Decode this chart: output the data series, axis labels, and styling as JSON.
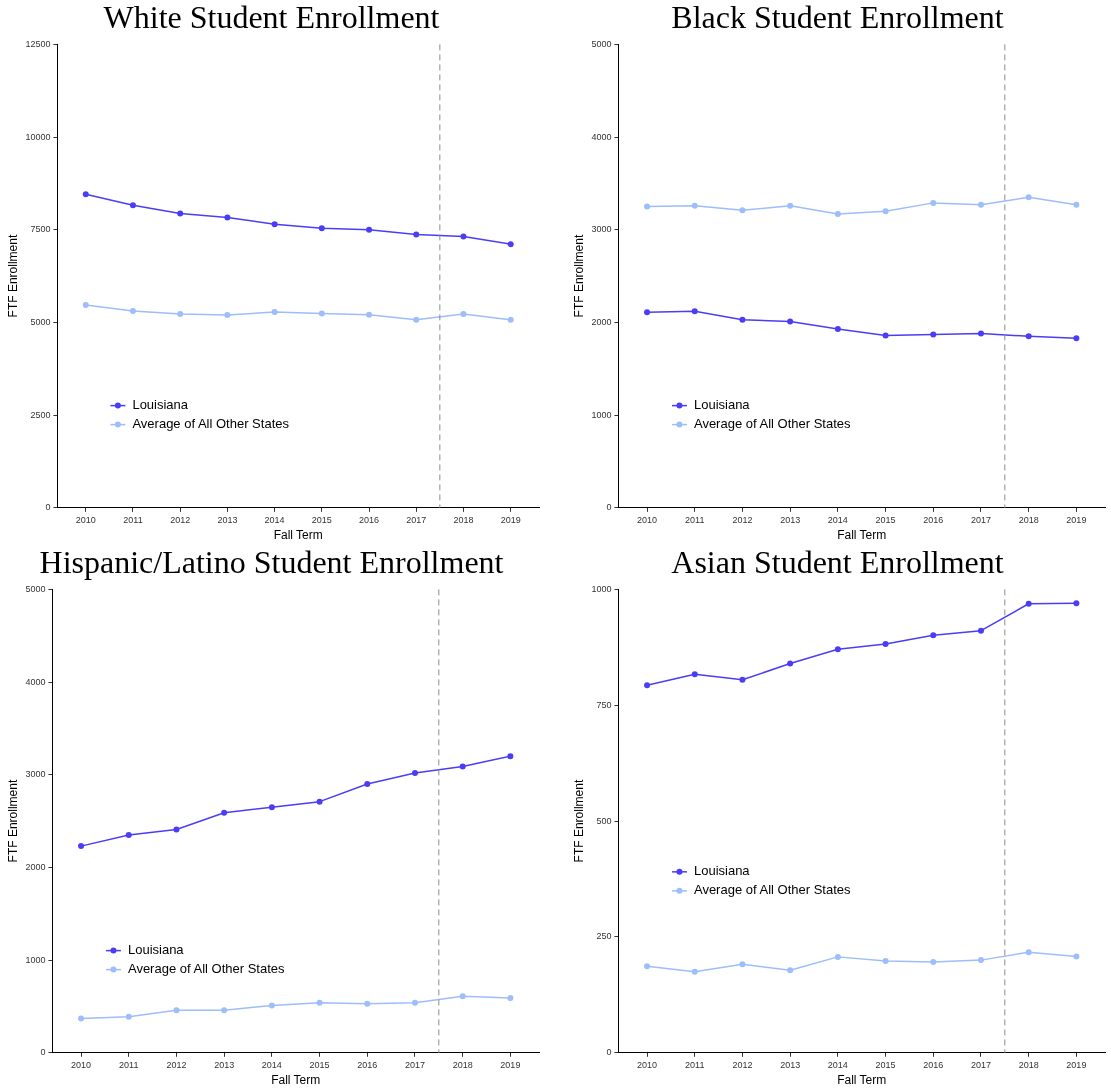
{
  "chart_data": [
    {
      "type": "line",
      "title": "White Student Enrollment",
      "xlabel": "Fall Term",
      "ylabel": "FTF Enrollment",
      "x": [
        2010,
        2011,
        2012,
        2013,
        2014,
        2015,
        2016,
        2017,
        2018,
        2019
      ],
      "xlim": [
        2009.4,
        2019.6
      ],
      "xticks": [
        2010,
        2011,
        2012,
        2013,
        2014,
        2015,
        2016,
        2017,
        2018,
        2019
      ],
      "ylim": [
        0,
        12500
      ],
      "yticks": [
        0,
        2500,
        5000,
        7500,
        10000,
        12500
      ],
      "grid": false,
      "legend": "bottom left",
      "marker": "circle",
      "line_style": "solid",
      "ref_lines": [
        {
          "axis": "x",
          "value": 2017.5,
          "color": "#8c8c8c",
          "line_style": "dashed"
        }
      ],
      "series": [
        {
          "name": "Louisiana",
          "color": "#4b3df6",
          "values": [
            8460,
            8160,
            7940,
            7830,
            7650,
            7540,
            7500,
            7370,
            7320,
            7110
          ]
        },
        {
          "name": "Average of All Other States",
          "color": "#9dbdfb",
          "values": [
            5470,
            5310,
            5230,
            5200,
            5280,
            5240,
            5210,
            5070,
            5230,
            5070
          ]
        }
      ]
    },
    {
      "type": "line",
      "title": "Black Student Enrollment",
      "xlabel": "Fall Term",
      "ylabel": "FTF Enrollment",
      "x": [
        2010,
        2011,
        2012,
        2013,
        2014,
        2015,
        2016,
        2017,
        2018,
        2019
      ],
      "xlim": [
        2009.4,
        2019.6
      ],
      "xticks": [
        2010,
        2011,
        2012,
        2013,
        2014,
        2015,
        2016,
        2017,
        2018,
        2019
      ],
      "ylim": [
        0,
        5000
      ],
      "yticks": [
        0,
        1000,
        2000,
        3000,
        4000,
        5000
      ],
      "grid": false,
      "legend": "bottom left",
      "marker": "circle",
      "line_style": "solid",
      "ref_lines": [
        {
          "axis": "x",
          "value": 2017.5,
          "color": "#8c8c8c",
          "line_style": "dashed"
        }
      ],
      "series": [
        {
          "name": "Louisiana",
          "color": "#4b3df6",
          "values": [
            2110,
            2120,
            2030,
            2010,
            1930,
            1860,
            1870,
            1880,
            1850,
            1830
          ]
        },
        {
          "name": "Average of All Other States",
          "color": "#9dbdfb",
          "values": [
            3250,
            3260,
            3210,
            3260,
            3170,
            3200,
            3290,
            3270,
            3350,
            3270
          ]
        }
      ]
    },
    {
      "type": "line",
      "title": "Hispanic/Latino Student Enrollment",
      "xlabel": "Fall Term",
      "ylabel": "FTF Enrollment",
      "x": [
        2010,
        2011,
        2012,
        2013,
        2014,
        2015,
        2016,
        2017,
        2018,
        2019
      ],
      "xlim": [
        2009.4,
        2019.6
      ],
      "xticks": [
        2010,
        2011,
        2012,
        2013,
        2014,
        2015,
        2016,
        2017,
        2018,
        2019
      ],
      "ylim": [
        0,
        5000
      ],
      "yticks": [
        0,
        1000,
        2000,
        3000,
        4000,
        5000
      ],
      "grid": false,
      "legend": "bottom left",
      "marker": "circle",
      "line_style": "solid",
      "ref_lines": [
        {
          "axis": "x",
          "value": 2017.5,
          "color": "#8c8c8c",
          "line_style": "dashed"
        }
      ],
      "series": [
        {
          "name": "Louisiana",
          "color": "#4b3df6",
          "values": [
            2230,
            2350,
            2410,
            2590,
            2650,
            2710,
            2900,
            3020,
            3090,
            3200
          ]
        },
        {
          "name": "Average of All Other States",
          "color": "#9dbdfb",
          "values": [
            370,
            390,
            460,
            460,
            510,
            540,
            530,
            540,
            610,
            590
          ]
        }
      ]
    },
    {
      "type": "line",
      "title": "Asian Student Enrollment",
      "xlabel": "Fall Term",
      "ylabel": "FTF Enrollment",
      "x": [
        2010,
        2011,
        2012,
        2013,
        2014,
        2015,
        2016,
        2017,
        2018,
        2019
      ],
      "xlim": [
        2009.4,
        2019.6
      ],
      "xticks": [
        2010,
        2011,
        2012,
        2013,
        2014,
        2015,
        2016,
        2017,
        2018,
        2019
      ],
      "ylim": [
        0,
        1000
      ],
      "yticks": [
        0,
        250,
        500,
        750,
        1000
      ],
      "grid": false,
      "legend": "left",
      "marker": "circle",
      "line_style": "solid",
      "ref_lines": [
        {
          "axis": "x",
          "value": 2017.5,
          "color": "#8c8c8c",
          "line_style": "dashed"
        }
      ],
      "series": [
        {
          "name": "Louisiana",
          "color": "#4b3df6",
          "values": [
            793,
            817,
            805,
            840,
            871,
            882,
            901,
            911,
            969,
            970
          ]
        },
        {
          "name": "Average of All Other States",
          "color": "#9dbdfb",
          "values": [
            187,
            175,
            191,
            178,
            207,
            198,
            196,
            200,
            217,
            208
          ]
        }
      ]
    }
  ]
}
